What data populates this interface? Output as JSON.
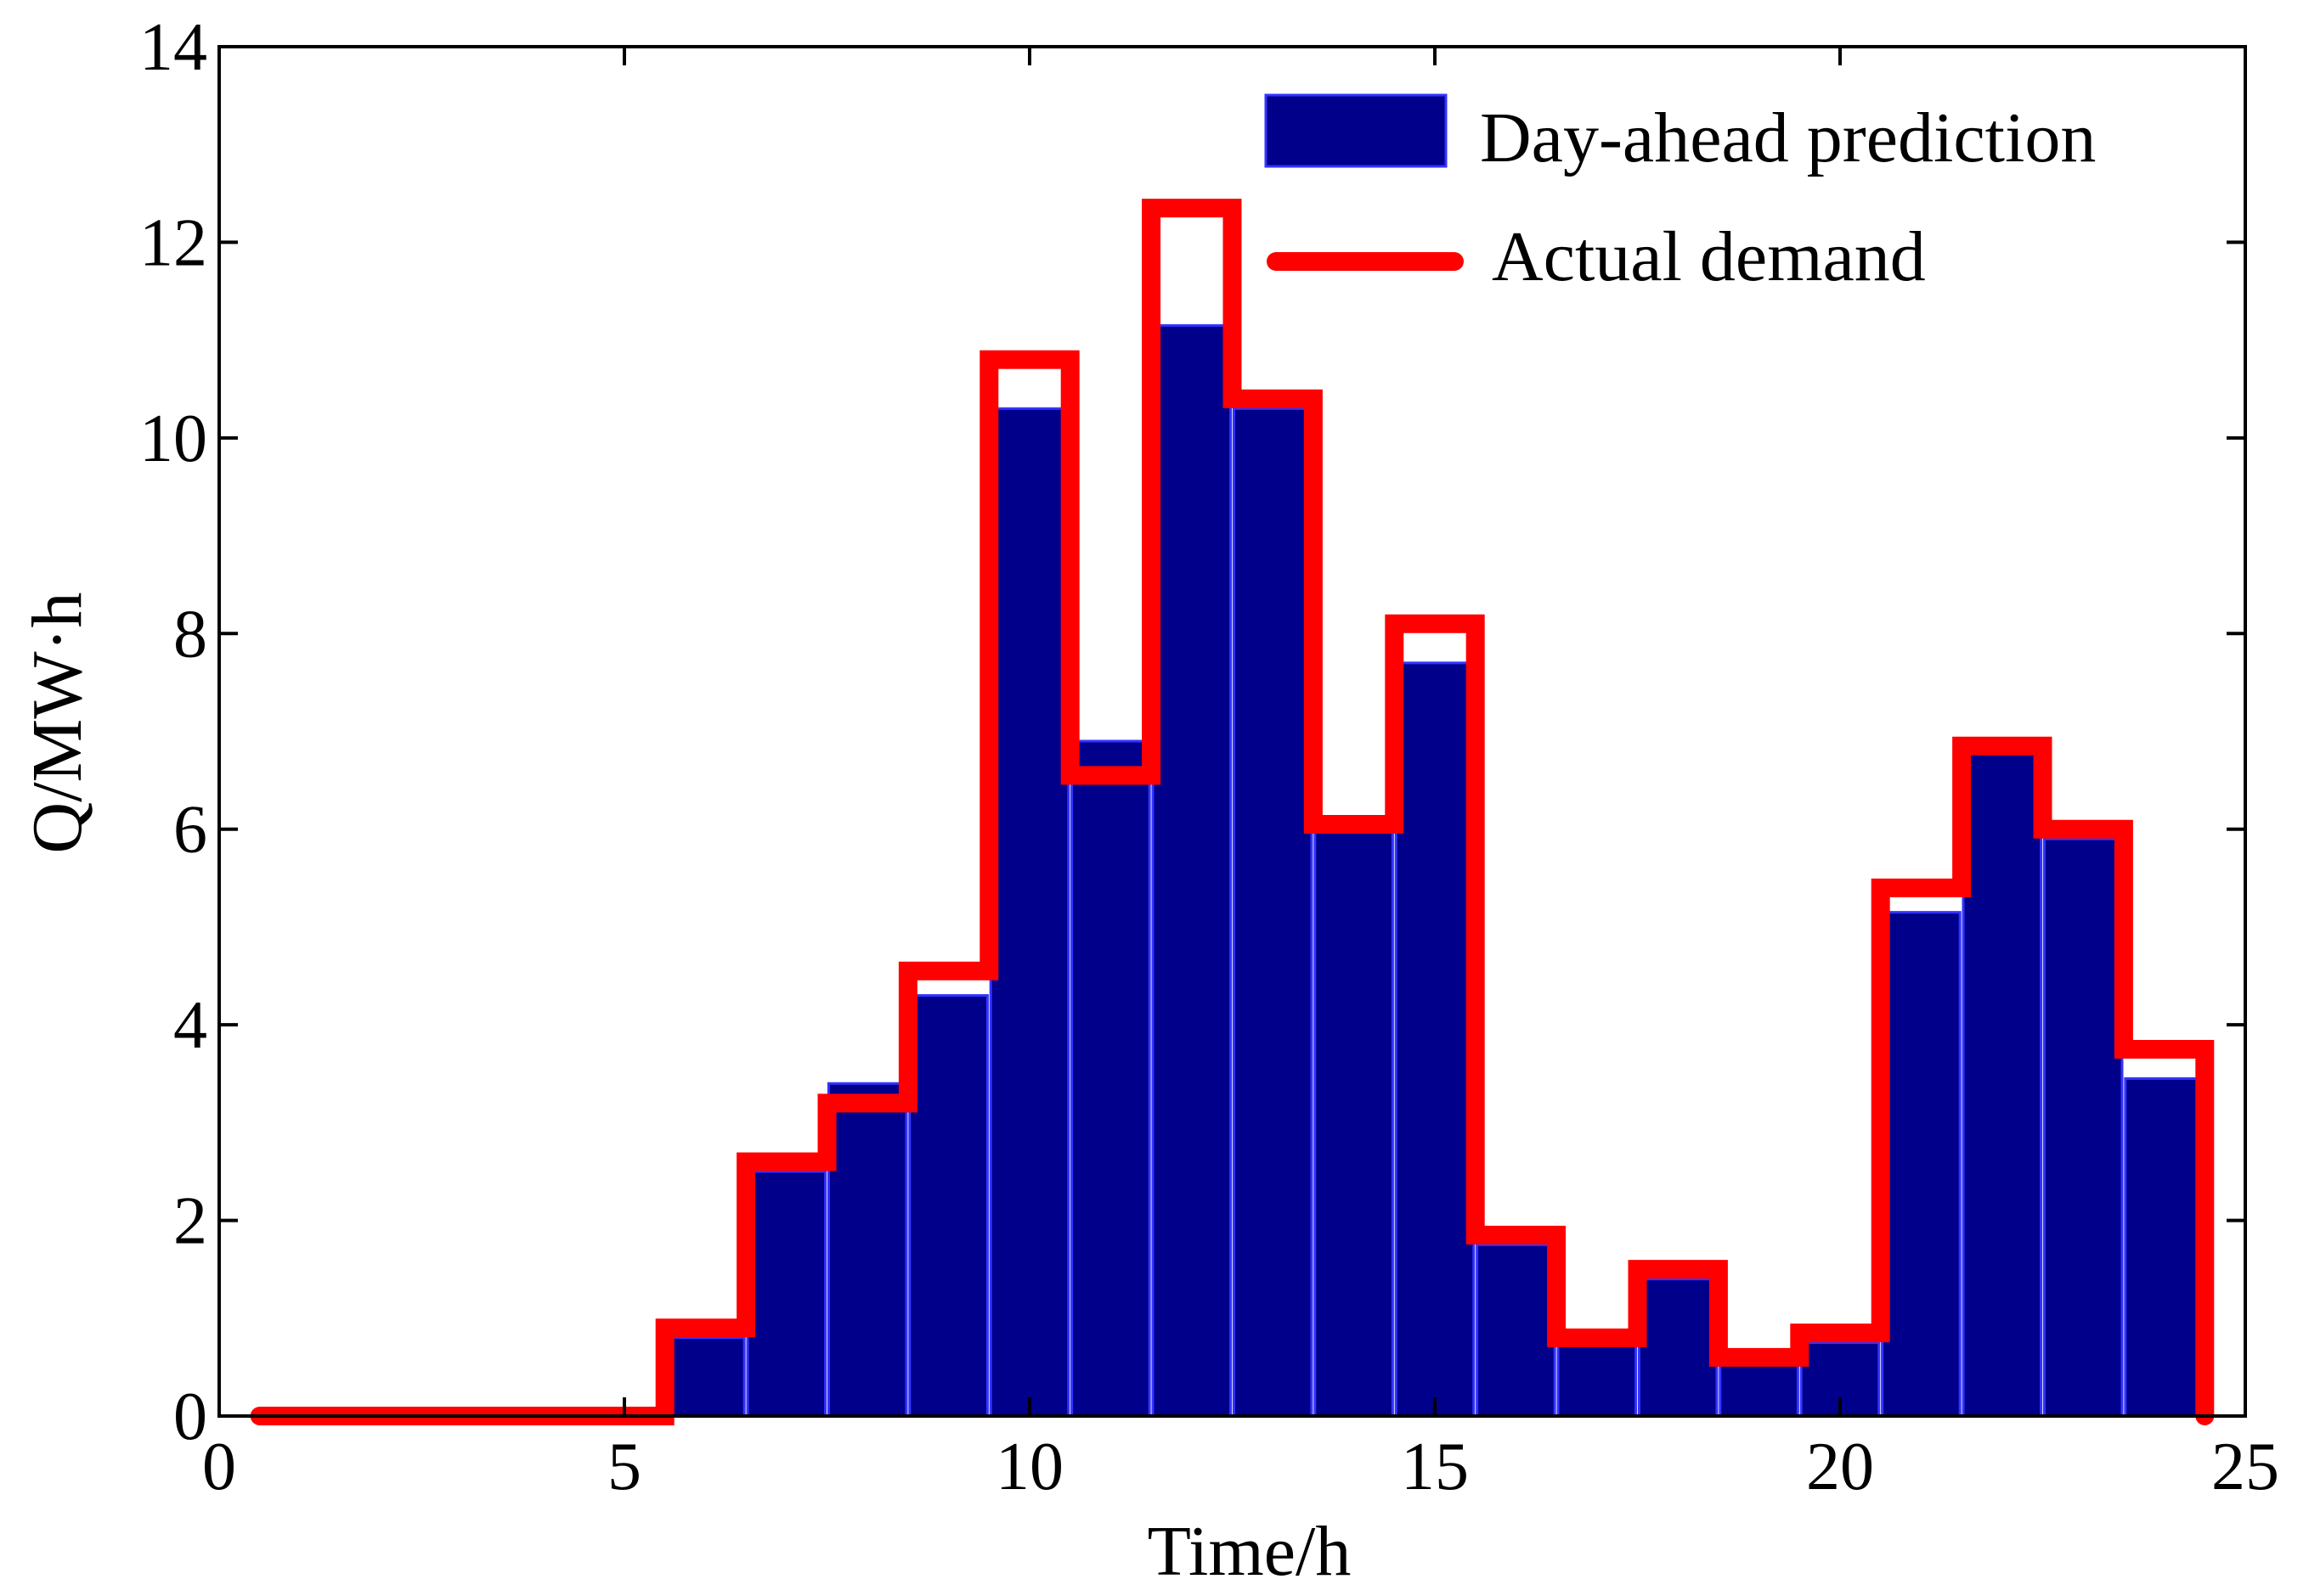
{
  "chart_data": {
    "type": "bar",
    "title": "",
    "xlabel": "Time/h",
    "ylabel": "Q/MW·h",
    "xlim": [
      0,
      25
    ],
    "ylim": [
      0,
      14
    ],
    "xticks": [
      0,
      5,
      10,
      15,
      20,
      25
    ],
    "yticks": [
      0,
      2,
      4,
      6,
      8,
      10,
      12,
      14
    ],
    "grid": false,
    "legend_position": "top-right",
    "categories": [
      1,
      2,
      3,
      4,
      5,
      6,
      7,
      8,
      9,
      10,
      11,
      12,
      13,
      14,
      15,
      16,
      17,
      18,
      19,
      20,
      21,
      22,
      23,
      24
    ],
    "series": [
      {
        "name": "Day-ahead prediction",
        "style": "bar",
        "color": "#00008B",
        "edge_color": "#3333FF",
        "values": [
          0,
          0,
          0,
          0,
          0,
          0.8,
          2.5,
          3.4,
          4.3,
          10.3,
          6.9,
          11.15,
          10.3,
          6.0,
          7.7,
          1.75,
          0.75,
          1.4,
          0.55,
          0.75,
          5.15,
          6.8,
          5.9,
          3.45
        ]
      },
      {
        "name": "Actual demand",
        "style": "step",
        "color": "#FF0000",
        "values": [
          0,
          0,
          0,
          0,
          0,
          0.9,
          2.6,
          3.2,
          4.55,
          10.8,
          6.55,
          12.35,
          10.4,
          6.05,
          8.1,
          1.85,
          0.8,
          1.5,
          0.6,
          0.85,
          5.4,
          6.85,
          6.0,
          3.75
        ]
      }
    ]
  }
}
